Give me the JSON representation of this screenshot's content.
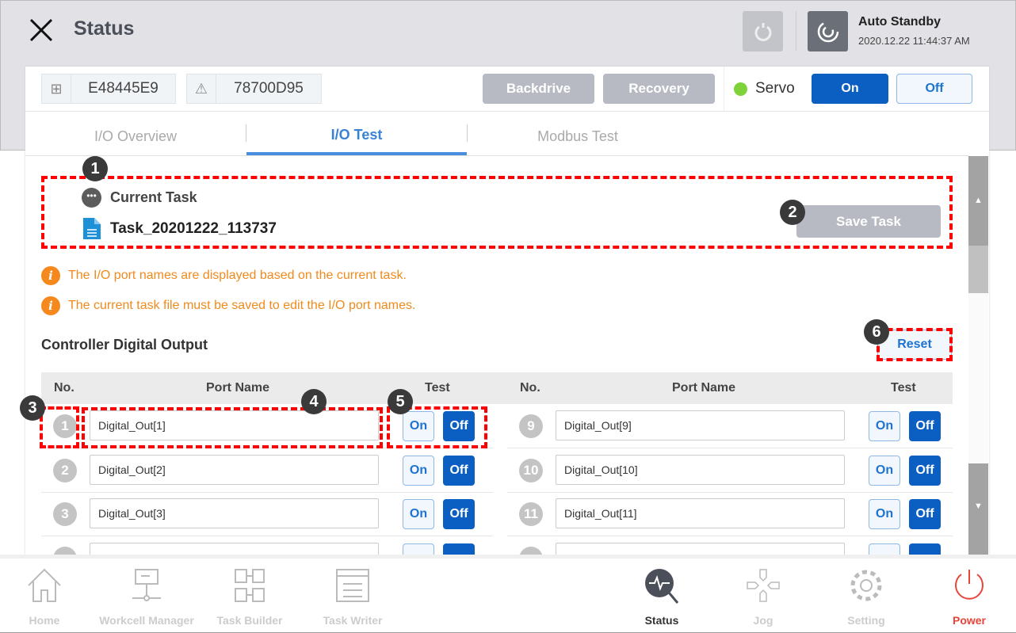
{
  "header": {
    "title": "Status",
    "close_icon": "close-icon",
    "mode": "Auto Standby",
    "datetime": "2020.12.22 11:44:37 AM"
  },
  "ids": {
    "controller": "E48445E9",
    "robot": "78700D95"
  },
  "toolbar": {
    "backdrive": "Backdrive",
    "recovery": "Recovery",
    "servo_label": "Servo",
    "servo_on": "On",
    "servo_off": "Off",
    "servo_status_color": "#7ed23a"
  },
  "tabs": [
    {
      "label": "I/O Overview"
    },
    {
      "label": "I/O Test",
      "active": true
    },
    {
      "label": "Modbus Test"
    }
  ],
  "current_task": {
    "label": "Current Task",
    "name": "Task_20201222_113737",
    "save": "Save Task"
  },
  "notices": [
    "The I/O port names are displayed based on the current task.",
    "The current task file must be saved to edit the I/O port names."
  ],
  "section": {
    "title": "Controller Digital Output",
    "reset": "Reset"
  },
  "table": {
    "headers": {
      "no": "No.",
      "port": "Port Name",
      "test": "Test"
    },
    "left": [
      {
        "no": "1",
        "name": "Digital_Out[1]",
        "on": "On",
        "off": "Off"
      },
      {
        "no": "2",
        "name": "Digital_Out[2]",
        "on": "On",
        "off": "Off"
      },
      {
        "no": "3",
        "name": "Digital_Out[3]",
        "on": "On",
        "off": "Off"
      }
    ],
    "right": [
      {
        "no": "9",
        "name": "Digital_Out[9]",
        "on": "On",
        "off": "Off"
      },
      {
        "no": "10",
        "name": "Digital_Out[10]",
        "on": "On",
        "off": "Off"
      },
      {
        "no": "11",
        "name": "Digital_Out[11]",
        "on": "On",
        "off": "Off"
      }
    ]
  },
  "annotations": [
    "1",
    "2",
    "3",
    "4",
    "5",
    "6"
  ],
  "nav": [
    {
      "label": "Home"
    },
    {
      "label": "Workcell Manager"
    },
    {
      "label": "Task Builder"
    },
    {
      "label": "Task Writer"
    },
    {
      "label": "Status",
      "active": true
    },
    {
      "label": "Jog"
    },
    {
      "label": "Setting"
    },
    {
      "label": "Power"
    }
  ],
  "colors": {
    "accent": "#0b5fc2",
    "tab_active": "#3a82d5",
    "warning": "#f08a1d",
    "power": "#e8443a"
  }
}
